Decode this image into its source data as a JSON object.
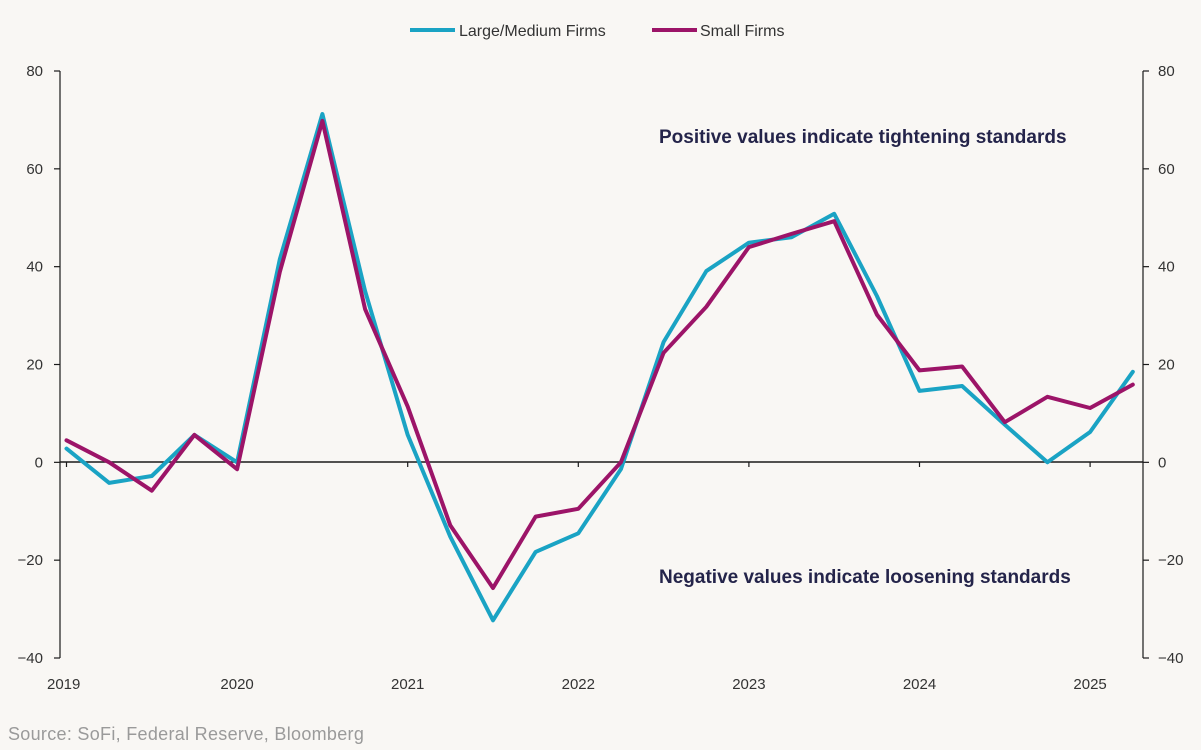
{
  "chart_data": {
    "type": "line",
    "x": [
      "2019Q1",
      "2019Q2",
      "2019Q3",
      "2019Q4",
      "2020Q1",
      "2020Q2",
      "2020Q3",
      "2020Q4",
      "2021Q1",
      "2021Q2",
      "2021Q3",
      "2021Q4",
      "2022Q1",
      "2022Q2",
      "2022Q3",
      "2022Q4",
      "2023Q1",
      "2023Q2",
      "2023Q3",
      "2023Q4",
      "2024Q1",
      "2024Q2",
      "2024Q3",
      "2024Q4",
      "2025Q1",
      "2025Q2"
    ],
    "x_tick_labels": [
      "2019",
      "2020",
      "2021",
      "2022",
      "2023",
      "2024",
      "2025"
    ],
    "ylim": [
      -40,
      80
    ],
    "y_ticks": [
      80,
      60,
      40,
      20,
      0,
      -20,
      -40
    ],
    "y_tick_labels": [
      "80",
      "60",
      "40",
      "20",
      "0",
      "−20",
      "−40"
    ],
    "grid": false,
    "legend_position": "top-center",
    "series": [
      {
        "name": "Large/Medium Firms",
        "color": "#1aa3c4",
        "values": [
          2.8,
          -4.2,
          -2.8,
          5.6,
          0.0,
          41.5,
          71.2,
          35.0,
          5.6,
          -15.2,
          -32.3,
          -18.3,
          -14.5,
          -1.4,
          24.6,
          39.1,
          44.9,
          46.0,
          50.8,
          34.0,
          14.6,
          15.6,
          7.7,
          0.0,
          6.2,
          18.5
        ]
      },
      {
        "name": "Small Firms",
        "color": "#9c1468",
        "values": [
          4.5,
          0.0,
          -5.8,
          5.6,
          -1.4,
          38.9,
          69.8,
          31.3,
          11.4,
          -12.9,
          -25.7,
          -11.1,
          -9.5,
          0.0,
          22.4,
          31.8,
          44.0,
          46.7,
          49.3,
          30.2,
          18.8,
          19.6,
          8.2,
          13.4,
          11.1,
          15.9
        ]
      }
    ],
    "annotations": [
      "Positive values indicate tightening standards",
      "Negative values indicate loosening standards"
    ]
  },
  "source": "Source: SoFi, Federal Reserve, Bloomberg",
  "colors": {
    "background": "#f9f7f4",
    "axis": "#1a1a1a",
    "annotation": "#24244a"
  }
}
